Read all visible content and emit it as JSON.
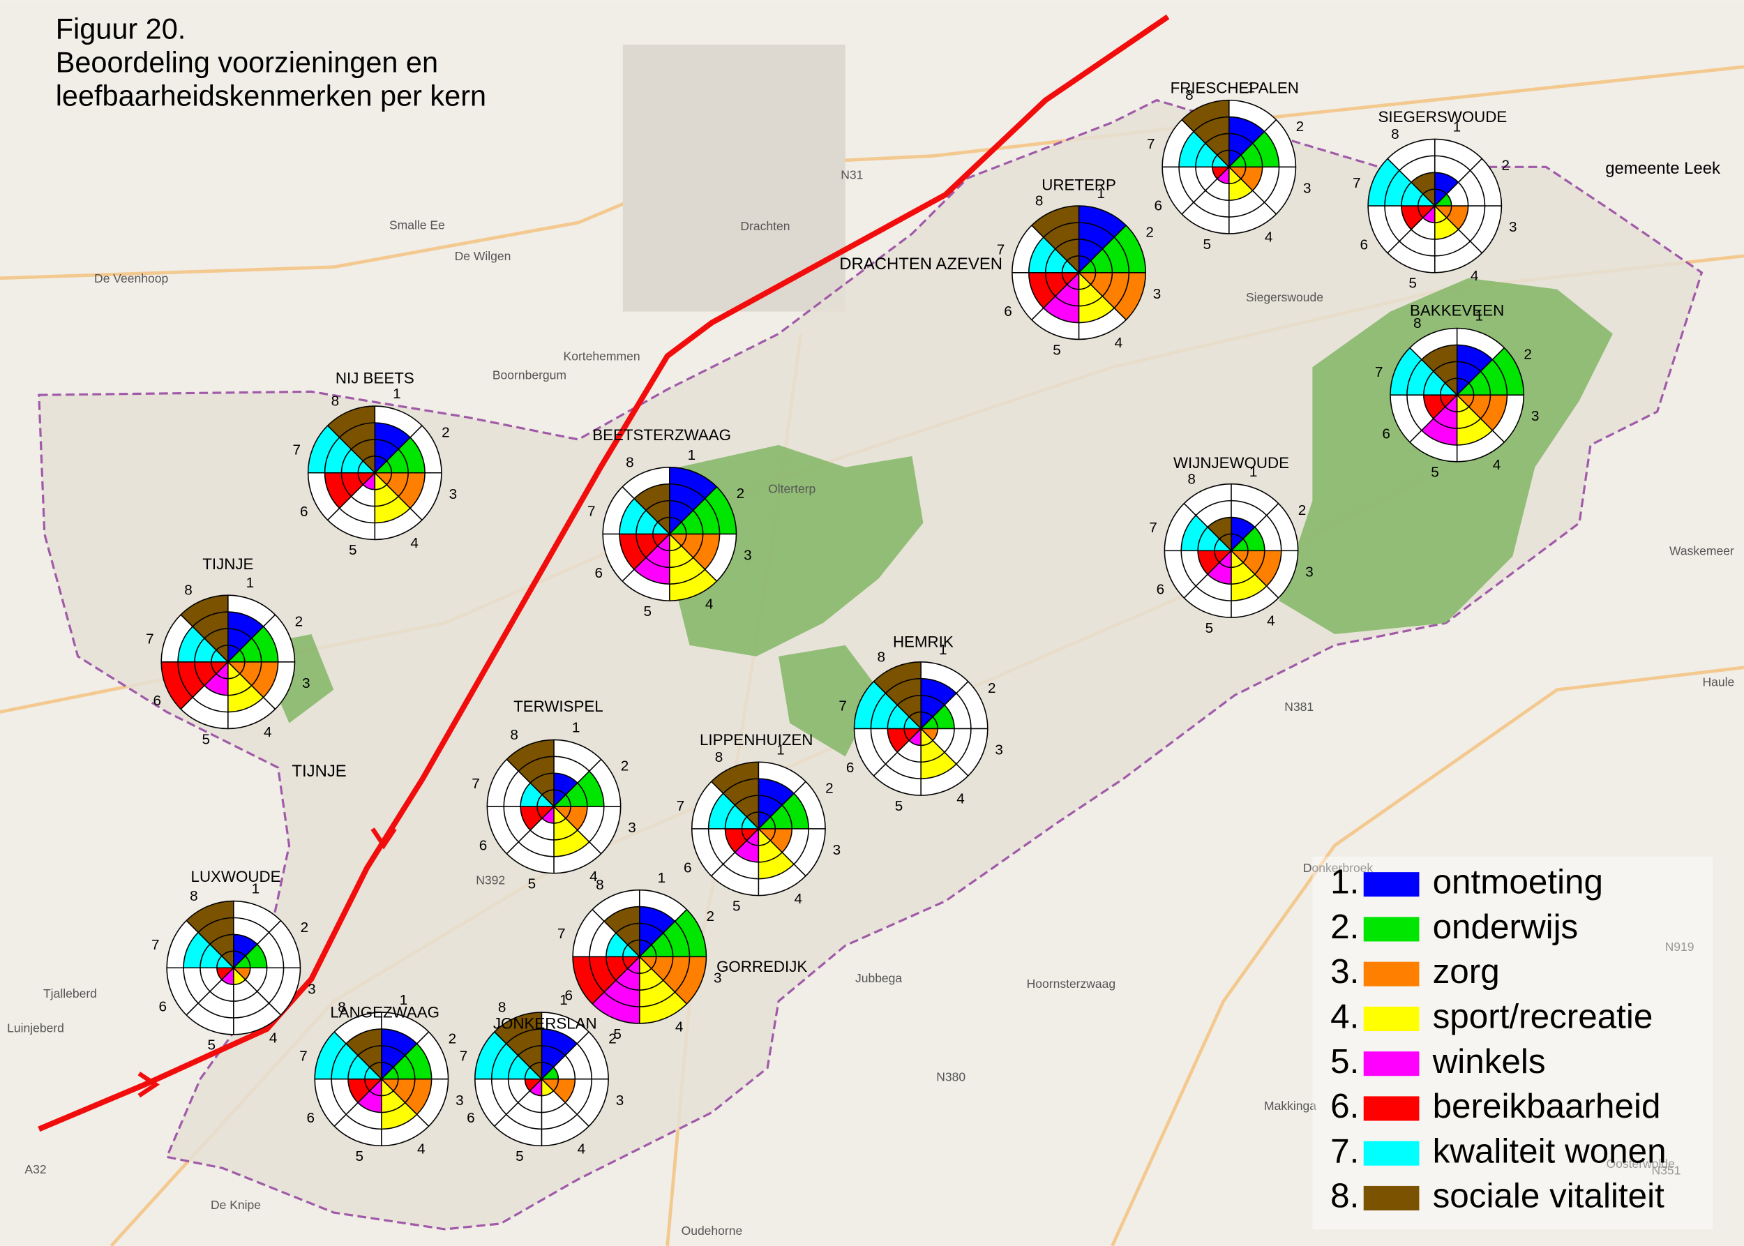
{
  "title": [
    "Figuur 20.",
    "Beoordeling voorzieningen en",
    "leefbaarheidskenmerken per kern"
  ],
  "legend": [
    {
      "number": "1.",
      "label": "ontmoeting",
      "color": "#0000ff"
    },
    {
      "number": "2.",
      "label": "onderwijs",
      "color": "#00e600"
    },
    {
      "number": "3.",
      "label": "zorg",
      "color": "#ff8000"
    },
    {
      "number": "4.",
      "label": "sport/recreatie",
      "color": "#ffff00"
    },
    {
      "number": "5.",
      "label": "winkels",
      "color": "#ff00ff"
    },
    {
      "number": "6.",
      "label": "bereikbaarheid",
      "color": "#ff0000"
    },
    {
      "number": "7.",
      "label": "kwaliteit wonen",
      "color": "#00ffff"
    },
    {
      "number": "8.",
      "label": "sociale vitaliteit",
      "color": "#7a5200"
    }
  ],
  "sector_labels": [
    "1",
    "2",
    "3",
    "4",
    "5",
    "6",
    "7",
    "8"
  ],
  "scale": {
    "rings": [
      1,
      2,
      3,
      4
    ]
  },
  "kernen": [
    {
      "name": "FRIESCHEPALEN",
      "scores": [
        3,
        3,
        2,
        2,
        1,
        1,
        3,
        4
      ]
    },
    {
      "name": "SIEGERSWOUDE",
      "scores": [
        2,
        1,
        2,
        2,
        1,
        2,
        4,
        2
      ]
    },
    {
      "name": "URETERP",
      "scores": [
        4,
        4,
        4,
        3,
        3,
        3,
        3,
        4
      ]
    },
    {
      "name": "BAKKEVEEN",
      "scores": [
        3,
        4,
        3,
        3,
        3,
        2,
        4,
        3
      ]
    },
    {
      "name": "WIJNJEWOUDE",
      "scores": [
        2,
        2,
        3,
        3,
        2,
        2,
        3,
        2
      ]
    },
    {
      "name": "NIJ BEETS",
      "scores": [
        3,
        3,
        3,
        3,
        1,
        3,
        4,
        4
      ]
    },
    {
      "name": "BEETSTERZWAAG",
      "scores": [
        4,
        4,
        3,
        4,
        3,
        3,
        3,
        3
      ]
    },
    {
      "name": "TIJNJE",
      "scores": [
        3,
        3,
        3,
        3,
        2,
        4,
        3,
        4
      ]
    },
    {
      "name": "TERWISPEL",
      "scores": [
        2,
        3,
        2,
        3,
        1,
        2,
        2,
        4
      ]
    },
    {
      "name": "LIPPENHUIZEN",
      "scores": [
        3,
        3,
        2,
        3,
        2,
        2,
        3,
        4
      ]
    },
    {
      "name": "HEMRIK",
      "scores": [
        3,
        2,
        1,
        3,
        1,
        2,
        4,
        4
      ]
    },
    {
      "name": "LUXWOUDE",
      "scores": [
        2,
        2,
        1,
        1,
        1,
        1,
        3,
        4
      ]
    },
    {
      "name": "GORREDIJK",
      "scores": [
        3,
        4,
        4,
        4,
        4,
        4,
        2,
        3
      ]
    },
    {
      "name": "LANGEZWAAG",
      "scores": [
        3,
        3,
        3,
        3,
        2,
        2,
        4,
        3
      ]
    },
    {
      "name": "JONKERSLAN",
      "scores": [
        3,
        1,
        2,
        1,
        1,
        1,
        4,
        4
      ]
    }
  ],
  "places": [
    "Drachten",
    "Smalle Ee",
    "De Wilgen",
    "De Veenhoop",
    "Kortehemmen",
    "Boornbergum",
    "Olterterp",
    "Siegerswoude",
    "Waskemeer",
    "Haule",
    "Donkerbroek",
    "Jubbega",
    "Hoornsterzwaag",
    "Makkinga",
    "Oosterwolde",
    "Tjalleberd",
    "Luinjeberd",
    "De Knipe",
    "Oudehorne",
    "gemeente Leek",
    "DRACHTEN AZEVEN",
    "TIJNJE",
    "N31",
    "N381",
    "N392",
    "N380",
    "N919",
    "N351",
    "A32"
  ]
}
